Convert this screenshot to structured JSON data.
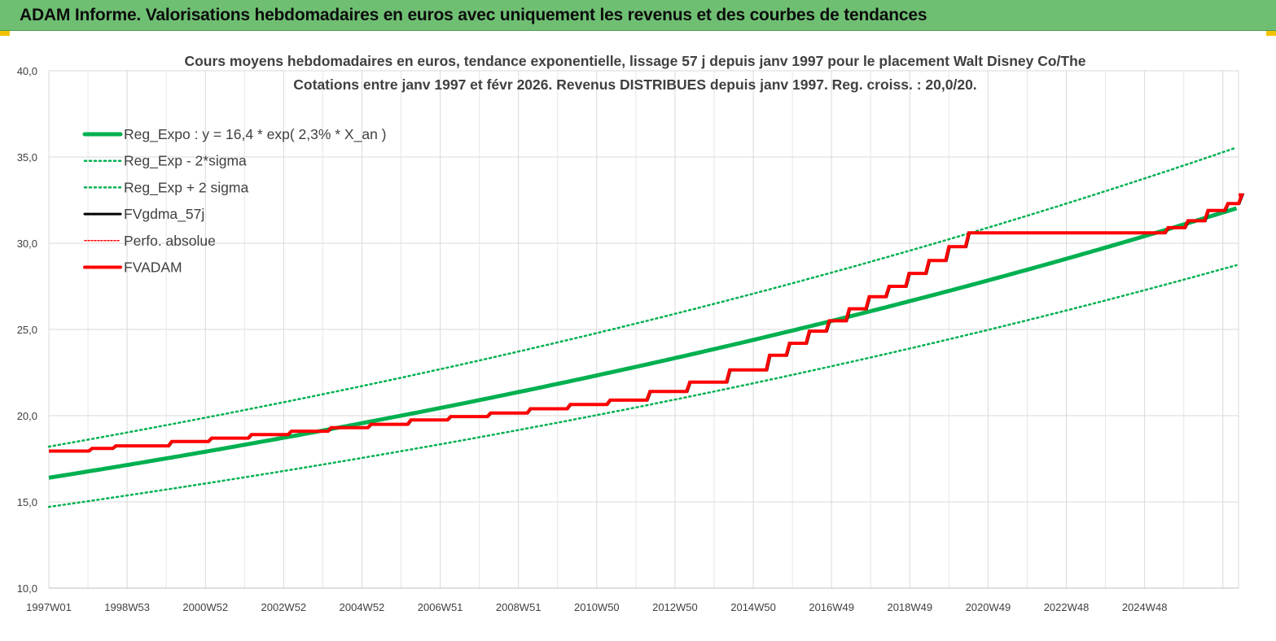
{
  "header": {
    "title": "ADAM Informe. Valorisations hebdomadaires en euros avec uniquement les revenus et des courbes de tendances"
  },
  "colors": {
    "header_bg": "#6fbf73",
    "green": "#00b050",
    "black": "#000000",
    "red": "#ff0000",
    "accent": "#f2c200"
  },
  "chart_data": {
    "type": "line",
    "title_line1": "Cours moyens hebdomadaires en euros, tendance exponentielle, lissage 57 j depuis janv 1997 pour le placement Walt Disney Co/The",
    "title_line2": "Cotations entre janv 1997 et févr 2026. Revenus DISTRIBUES depuis janv 1997. Reg. croiss. : 20,0/20.",
    "ylim": [
      10,
      40
    ],
    "y_ticks": [
      "10,0",
      "15,0",
      "20,0",
      "25,0",
      "30,0",
      "35,0",
      "40,0"
    ],
    "x_range_years": [
      1997.0,
      2026.15
    ],
    "x_ticks": [
      "1997W01",
      "1998W53",
      "2000W52",
      "2002W52",
      "2004W52",
      "2006W51",
      "2008W51",
      "2010W50",
      "2012W50",
      "2014W50",
      "2016W49",
      "2018W49",
      "2020W49",
      "2022W48",
      "2024W48"
    ],
    "legend": [
      "Reg_Expo : y = 16,4 * exp( 2,3% *  X_an )",
      "Reg_Exp - 2*sigma",
      "Reg_Exp + 2 sigma",
      "FVgdma_57j",
      "Perfo. absolue",
      "FVADAM"
    ],
    "legend_placement": "top-left",
    "grid": true,
    "regression": {
      "a": 16.4,
      "rate": 0.023
    },
    "band_factors": {
      "minus_2sigma": 0.897,
      "plus_2sigma": 1.11
    },
    "series": [
      {
        "name": "FVADAM",
        "style": "step",
        "points": [
          [
            1997.0,
            17.95
          ],
          [
            1998.0,
            18.1
          ],
          [
            1998.6,
            18.25
          ],
          [
            2000.0,
            18.5
          ],
          [
            2001.0,
            18.7
          ],
          [
            2002.0,
            18.9
          ],
          [
            2003.0,
            19.1
          ],
          [
            2004.0,
            19.3
          ],
          [
            2005.0,
            19.5
          ],
          [
            2006.0,
            19.75
          ],
          [
            2007.0,
            19.95
          ],
          [
            2008.0,
            20.15
          ],
          [
            2009.0,
            20.4
          ],
          [
            2010.0,
            20.65
          ],
          [
            2011.0,
            20.9
          ],
          [
            2012.0,
            21.4
          ],
          [
            2013.0,
            21.95
          ],
          [
            2014.0,
            22.65
          ],
          [
            2015.0,
            23.5
          ],
          [
            2015.5,
            24.2
          ],
          [
            2016.0,
            24.9
          ],
          [
            2016.5,
            25.5
          ],
          [
            2017.0,
            26.2
          ],
          [
            2017.5,
            26.9
          ],
          [
            2018.0,
            27.5
          ],
          [
            2018.5,
            28.25
          ],
          [
            2019.0,
            29.0
          ],
          [
            2019.5,
            29.8
          ],
          [
            2020.0,
            30.6
          ],
          [
            2025.0,
            30.9
          ],
          [
            2025.5,
            31.3
          ],
          [
            2026.0,
            31.9
          ],
          [
            2026.5,
            32.3
          ],
          [
            2026.85,
            32.8
          ]
        ]
      },
      {
        "name": "FVgdma_57j",
        "style": "smooth-step"
      },
      {
        "name": "Perfo. absolue",
        "style": "dotted"
      }
    ]
  }
}
